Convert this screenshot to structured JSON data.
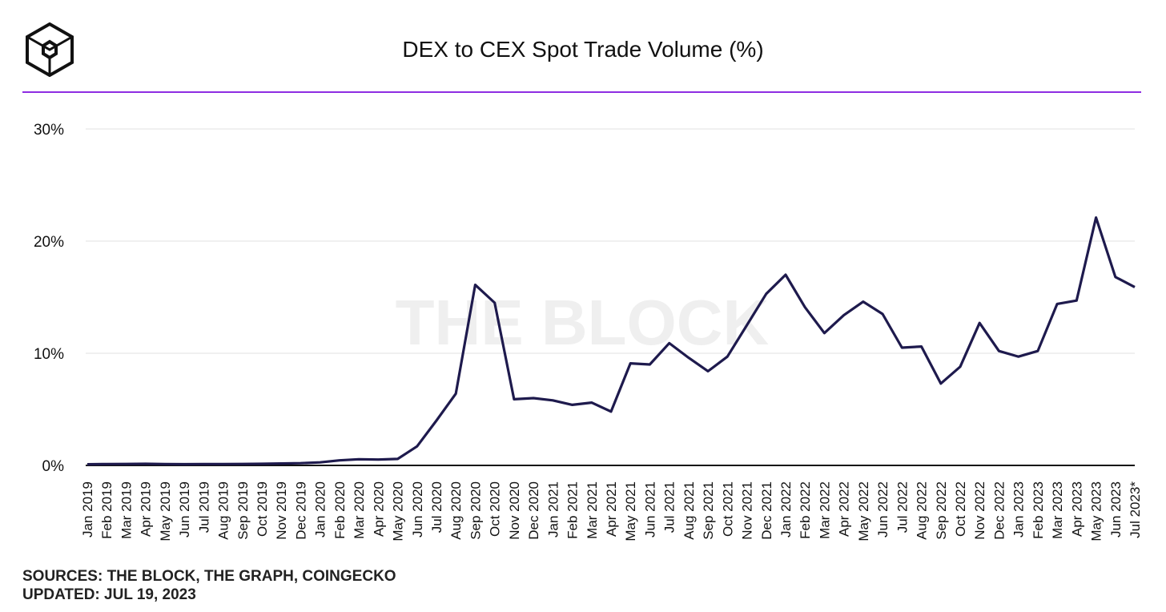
{
  "header": {
    "logo_name": "the-block-cube-logo",
    "title": "DEX to CEX Spot Trade Volume (%)"
  },
  "footer": {
    "sources": "SOURCES: THE BLOCK, THE GRAPH, COINGECKO",
    "updated": "UPDATED: JUL 19, 2023"
  },
  "watermark": "THE BLOCK",
  "colors": {
    "line": "#1e1a4d",
    "accent_rule": "#8e2de2",
    "grid": "#e6e6e6",
    "axis": "#111111"
  },
  "chart_data": {
    "type": "line",
    "title": "DEX to CEX Spot Trade Volume (%)",
    "xlabel": "",
    "ylabel": "",
    "ylim": [
      0,
      30
    ],
    "yticks": [
      0,
      10,
      20,
      30
    ],
    "ytick_labels": [
      "0%",
      "10%",
      "20%",
      "30%"
    ],
    "grid": true,
    "categories": [
      "Jan 2019",
      "Feb 2019",
      "Mar 2019",
      "Apr 2019",
      "May 2019",
      "Jun 2019",
      "Jul 2019",
      "Aug 2019",
      "Sep 2019",
      "Oct 2019",
      "Nov 2019",
      "Dec 2019",
      "Jan 2020",
      "Feb 2020",
      "Mar 2020",
      "Apr 2020",
      "May 2020",
      "Jun 2020",
      "Jul 2020",
      "Aug 2020",
      "Sep 2020",
      "Oct 2020",
      "Nov 2020",
      "Dec 2020",
      "Jan 2021",
      "Feb 2021",
      "Mar 2021",
      "Apr 2021",
      "May 2021",
      "Jun 2021",
      "Jul 2021",
      "Aug 2021",
      "Sep 2021",
      "Oct 2021",
      "Nov 2021",
      "Dec 2021",
      "Jan 2022",
      "Feb 2022",
      "Mar 2022",
      "Apr 2022",
      "May 2022",
      "Jun 2022",
      "Jul 2022",
      "Aug 2022",
      "Sep 2022",
      "Oct 2022",
      "Nov 2022",
      "Dec 2022",
      "Jan 2023",
      "Feb 2023",
      "Mar 2023",
      "Apr 2023",
      "May 2023",
      "Jun 2023",
      "Jul 2023*"
    ],
    "series": [
      {
        "name": "DEX to CEX Spot Trade Volume (%)",
        "values": [
          0.1,
          0.12,
          0.13,
          0.14,
          0.12,
          0.11,
          0.12,
          0.12,
          0.13,
          0.14,
          0.17,
          0.2,
          0.27,
          0.45,
          0.55,
          0.52,
          0.58,
          1.7,
          4.0,
          6.4,
          16.1,
          14.5,
          5.9,
          6.0,
          5.8,
          5.4,
          5.6,
          4.8,
          9.1,
          9.0,
          10.9,
          9.6,
          8.4,
          9.7,
          12.5,
          15.3,
          17.0,
          14.1,
          11.8,
          13.4,
          14.6,
          13.5,
          10.5,
          10.6,
          7.3,
          8.8,
          12.7,
          10.2,
          9.7,
          10.2,
          14.4,
          14.7,
          22.1,
          16.8,
          15.9
        ]
      }
    ]
  }
}
